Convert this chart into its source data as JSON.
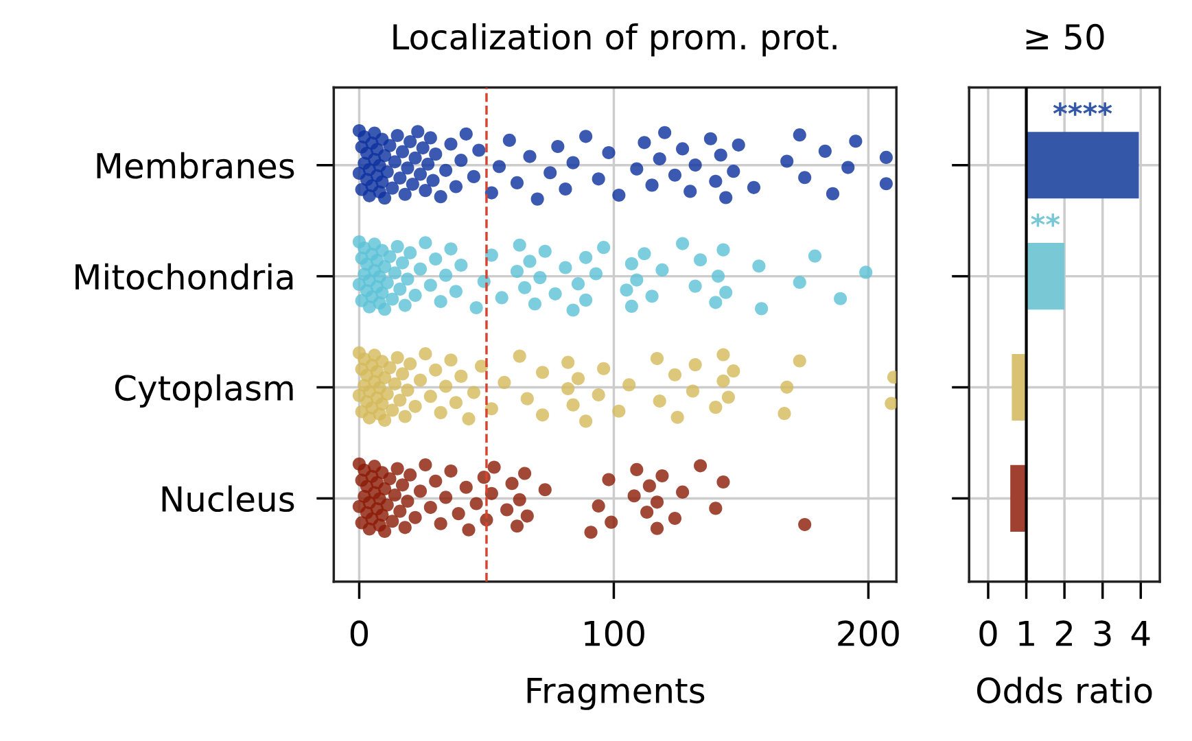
{
  "chart_data": [
    {
      "type": "scatter",
      "orientation": "horizontal",
      "title": "Localization of prom. prot.",
      "xlabel": "Fragments",
      "categories": [
        "Membranes",
        "Mitochondria",
        "Cytoplasm",
        "Nucleus"
      ],
      "series": [
        {
          "color": "#0b2f9f",
          "x": [
            "Membranes",
            "Membranes",
            "Membranes",
            "Membranes",
            "Membranes",
            "Membranes",
            "Membranes",
            "Membranes",
            "Membranes",
            "Membranes",
            "Membranes",
            "Membranes",
            "Membranes",
            "Membranes",
            "Membranes",
            "Membranes",
            "Membranes",
            "Membranes",
            "Membranes",
            "Membranes",
            "Membranes",
            "Membranes",
            "Membranes",
            "Membranes",
            "Membranes",
            "Membranes",
            "Membranes",
            "Membranes",
            "Membranes",
            "Membranes",
            "Membranes",
            "Membranes",
            "Membranes",
            "Membranes",
            "Membranes",
            "Membranes",
            "Membranes",
            "Membranes",
            "Membranes",
            "Membranes",
            "Membranes",
            "Membranes",
            "Membranes",
            "Membranes",
            "Membranes",
            "Membranes",
            "Membranes",
            "Membranes",
            "Membranes",
            "Membranes",
            "Membranes",
            "Membranes",
            "Membranes",
            "Membranes",
            "Membranes",
            "Membranes",
            "Membranes",
            "Membranes",
            "Membranes",
            "Membranes",
            "Membranes",
            "Membranes",
            "Membranes",
            "Membranes",
            "Membranes",
            "Membranes",
            "Membranes",
            "Membranes",
            "Membranes",
            "Membranes",
            "Membranes",
            "Membranes",
            "Membranes",
            "Membranes",
            "Membranes",
            "Membranes",
            "Membranes",
            "Membranes",
            "Membranes",
            "Membranes",
            "Membranes",
            "Membranes",
            "Membranes",
            "Membranes",
            "Membranes",
            "Membranes",
            "Membranes",
            "Membranes",
            "Membranes"
          ],
          "values": [
            0,
            0,
            1,
            1,
            2,
            2,
            3,
            3,
            4,
            4,
            5,
            5,
            6,
            6,
            7,
            7,
            8,
            8,
            9,
            9,
            10,
            10,
            11,
            12,
            13,
            14,
            15,
            16,
            17,
            18,
            19,
            20,
            21,
            22,
            23,
            24,
            25,
            26,
            27,
            28,
            29,
            30,
            32,
            34,
            36,
            38,
            40,
            42,
            45,
            47,
            52,
            55,
            59,
            62,
            67,
            70,
            75,
            78,
            81,
            84,
            89,
            94,
            98,
            102,
            109,
            112,
            115,
            118,
            120,
            124,
            127,
            130,
            132,
            138,
            140,
            142,
            144,
            147,
            149,
            155,
            168,
            173,
            175,
            183,
            186,
            192,
            195,
            207,
            207
          ]
        },
        {
          "color": "#5bc2d6",
          "x": [
            "Mitochondria",
            "Mitochondria",
            "Mitochondria",
            "Mitochondria",
            "Mitochondria",
            "Mitochondria",
            "Mitochondria",
            "Mitochondria",
            "Mitochondria",
            "Mitochondria",
            "Mitochondria",
            "Mitochondria",
            "Mitochondria",
            "Mitochondria",
            "Mitochondria",
            "Mitochondria",
            "Mitochondria",
            "Mitochondria",
            "Mitochondria",
            "Mitochondria",
            "Mitochondria",
            "Mitochondria",
            "Mitochondria",
            "Mitochondria",
            "Mitochondria",
            "Mitochondria",
            "Mitochondria",
            "Mitochondria",
            "Mitochondria",
            "Mitochondria",
            "Mitochondria",
            "Mitochondria",
            "Mitochondria",
            "Mitochondria",
            "Mitochondria",
            "Mitochondria",
            "Mitochondria",
            "Mitochondria",
            "Mitochondria",
            "Mitochondria",
            "Mitochondria",
            "Mitochondria",
            "Mitochondria",
            "Mitochondria",
            "Mitochondria",
            "Mitochondria",
            "Mitochondria",
            "Mitochondria",
            "Mitochondria",
            "Mitochondria",
            "Mitochondria",
            "Mitochondria",
            "Mitochondria",
            "Mitochondria",
            "Mitochondria",
            "Mitochondria",
            "Mitochondria",
            "Mitochondria",
            "Mitochondria",
            "Mitochondria",
            "Mitochondria",
            "Mitochondria",
            "Mitochondria",
            "Mitochondria",
            "Mitochondria",
            "Mitochondria",
            "Mitochondria",
            "Mitochondria",
            "Mitochondria",
            "Mitochondria",
            "Mitochondria",
            "Mitochondria",
            "Mitochondria",
            "Mitochondria",
            "Mitochondria",
            "Mitochondria",
            "Mitochondria",
            "Mitochondria",
            "Mitochondria",
            "Mitochondria",
            "Mitochondria"
          ],
          "values": [
            0,
            0,
            1,
            1,
            2,
            2,
            3,
            3,
            4,
            4,
            5,
            5,
            6,
            6,
            7,
            7,
            8,
            8,
            9,
            9,
            10,
            10,
            11,
            12,
            13,
            14,
            15,
            16,
            17,
            18,
            19,
            20,
            22,
            24,
            26,
            28,
            30,
            32,
            34,
            36,
            38,
            40,
            46,
            49,
            52,
            56,
            62,
            63,
            65,
            67,
            69,
            71,
            73,
            77,
            81,
            84,
            86,
            89,
            89,
            93,
            96,
            105,
            107,
            107,
            109,
            112,
            115,
            119,
            127,
            132,
            134,
            140,
            141,
            143,
            144,
            157,
            158,
            173,
            179,
            189,
            199
          ]
        },
        {
          "color": "#d4b95a",
          "x": [
            "Cytoplasm",
            "Cytoplasm",
            "Cytoplasm",
            "Cytoplasm",
            "Cytoplasm",
            "Cytoplasm",
            "Cytoplasm",
            "Cytoplasm",
            "Cytoplasm",
            "Cytoplasm",
            "Cytoplasm",
            "Cytoplasm",
            "Cytoplasm",
            "Cytoplasm",
            "Cytoplasm",
            "Cytoplasm",
            "Cytoplasm",
            "Cytoplasm",
            "Cytoplasm",
            "Cytoplasm",
            "Cytoplasm",
            "Cytoplasm",
            "Cytoplasm",
            "Cytoplasm",
            "Cytoplasm",
            "Cytoplasm",
            "Cytoplasm",
            "Cytoplasm",
            "Cytoplasm",
            "Cytoplasm",
            "Cytoplasm",
            "Cytoplasm",
            "Cytoplasm",
            "Cytoplasm",
            "Cytoplasm",
            "Cytoplasm",
            "Cytoplasm",
            "Cytoplasm",
            "Cytoplasm",
            "Cytoplasm",
            "Cytoplasm",
            "Cytoplasm",
            "Cytoplasm",
            "Cytoplasm",
            "Cytoplasm",
            "Cytoplasm",
            "Cytoplasm",
            "Cytoplasm",
            "Cytoplasm",
            "Cytoplasm",
            "Cytoplasm",
            "Cytoplasm",
            "Cytoplasm",
            "Cytoplasm",
            "Cytoplasm",
            "Cytoplasm",
            "Cytoplasm",
            "Cytoplasm",
            "Cytoplasm",
            "Cytoplasm",
            "Cytoplasm",
            "Cytoplasm",
            "Cytoplasm",
            "Cytoplasm",
            "Cytoplasm",
            "Cytoplasm",
            "Cytoplasm",
            "Cytoplasm",
            "Cytoplasm",
            "Cytoplasm",
            "Cytoplasm",
            "Cytoplasm",
            "Cytoplasm",
            "Cytoplasm",
            "Cytoplasm",
            "Cytoplasm"
          ],
          "values": [
            0,
            0,
            1,
            1,
            2,
            2,
            3,
            3,
            4,
            4,
            5,
            5,
            6,
            6,
            7,
            7,
            8,
            8,
            9,
            9,
            10,
            10,
            11,
            12,
            13,
            14,
            15,
            16,
            17,
            18,
            19,
            20,
            22,
            24,
            26,
            28,
            30,
            32,
            34,
            36,
            38,
            40,
            43,
            45,
            48,
            52,
            57,
            63,
            66,
            72,
            72,
            82,
            82,
            84,
            86,
            89,
            94,
            96,
            102,
            106,
            117,
            118,
            124,
            125,
            131,
            132,
            140,
            143,
            143,
            145,
            147,
            167,
            168,
            173,
            209,
            210
          ]
        },
        {
          "color": "#8b1a05",
          "x": [
            "Nucleus",
            "Nucleus",
            "Nucleus",
            "Nucleus",
            "Nucleus",
            "Nucleus",
            "Nucleus",
            "Nucleus",
            "Nucleus",
            "Nucleus",
            "Nucleus",
            "Nucleus",
            "Nucleus",
            "Nucleus",
            "Nucleus",
            "Nucleus",
            "Nucleus",
            "Nucleus",
            "Nucleus",
            "Nucleus",
            "Nucleus",
            "Nucleus",
            "Nucleus",
            "Nucleus",
            "Nucleus",
            "Nucleus",
            "Nucleus",
            "Nucleus",
            "Nucleus",
            "Nucleus",
            "Nucleus",
            "Nucleus",
            "Nucleus",
            "Nucleus",
            "Nucleus",
            "Nucleus",
            "Nucleus",
            "Nucleus",
            "Nucleus",
            "Nucleus",
            "Nucleus",
            "Nucleus",
            "Nucleus",
            "Nucleus",
            "Nucleus",
            "Nucleus",
            "Nucleus",
            "Nucleus",
            "Nucleus",
            "Nucleus",
            "Nucleus",
            "Nucleus",
            "Nucleus",
            "Nucleus",
            "Nucleus",
            "Nucleus",
            "Nucleus",
            "Nucleus",
            "Nucleus",
            "Nucleus",
            "Nucleus",
            "Nucleus",
            "Nucleus",
            "Nucleus",
            "Nucleus",
            "Nucleus",
            "Nucleus",
            "Nucleus",
            "Nucleus",
            "Nucleus",
            "Nucleus",
            "Nucleus"
          ],
          "values": [
            0,
            0,
            1,
            1,
            2,
            2,
            3,
            3,
            4,
            4,
            5,
            5,
            6,
            6,
            7,
            7,
            8,
            8,
            9,
            9,
            10,
            10,
            11,
            12,
            13,
            14,
            15,
            16,
            17,
            18,
            19,
            20,
            22,
            24,
            26,
            28,
            30,
            32,
            34,
            36,
            39,
            42,
            43,
            46,
            49,
            50,
            52,
            53,
            58,
            60,
            62,
            63,
            65,
            66,
            73,
            91,
            94,
            98,
            99,
            108,
            109,
            113,
            114,
            117,
            117,
            119,
            124,
            127,
            134,
            140,
            143,
            175
          ]
        }
      ],
      "xlim": [
        -10,
        211
      ],
      "xticks": [
        0,
        100,
        200
      ],
      "grid": true,
      "marker": "circle",
      "ref_lines": [
        {
          "axis": "x",
          "value": 50,
          "color": "#d9432f",
          "line_style": "dashed"
        }
      ]
    },
    {
      "type": "bar",
      "orientation": "horizontal",
      "title": "≥ 50",
      "xlabel": "Odds ratio",
      "categories": [
        null,
        null,
        null,
        null
      ],
      "values": [
        2.95,
        1.0,
        -0.38,
        -0.42
      ],
      "base": [
        1,
        1,
        1,
        1
      ],
      "colors": [
        "#3457a8",
        "#78c8d6",
        "#d9c273",
        "#a04030"
      ],
      "xlim": [
        -0.5,
        4.5
      ],
      "xticks": [
        0,
        1,
        2,
        3,
        4
      ],
      "grid": true,
      "tick_labels": "x",
      "ref_lines": [
        {
          "axis": "x",
          "value": 1,
          "color": "#000000",
          "line_style": "solid"
        }
      ],
      "annotations": [
        "****",
        "**"
      ]
    }
  ]
}
